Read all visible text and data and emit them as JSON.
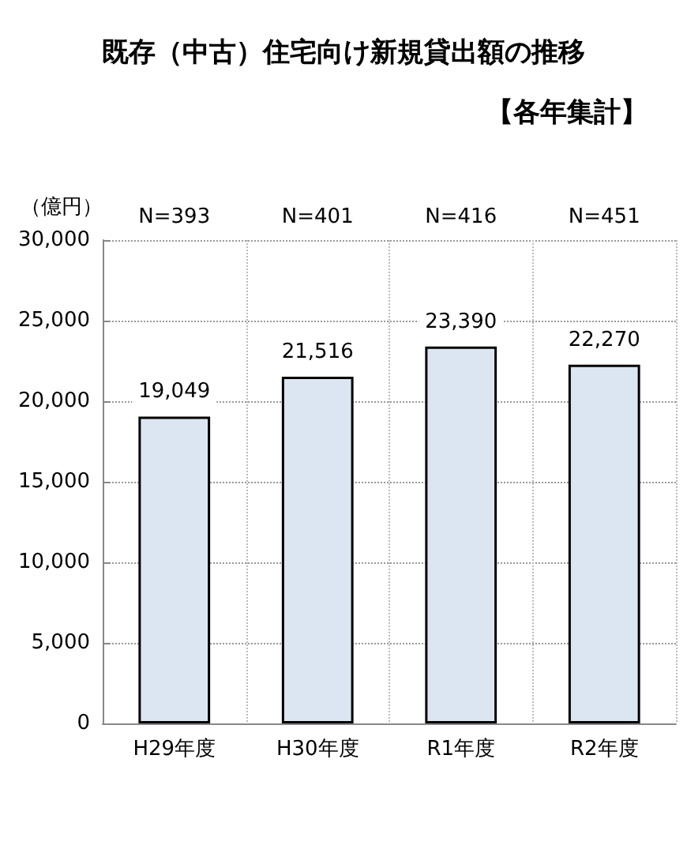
{
  "chart_data": {
    "type": "bar",
    "title": "既存（中古）住宅向け新規貸出額の推移",
    "subtitle": "【各年集計】",
    "ylabel": "（億円）",
    "categories": [
      "H29年度",
      "H30年度",
      "R1年度",
      "R2年度"
    ],
    "values": [
      19049,
      21516,
      23390,
      22270
    ],
    "color": "#dce6f2",
    "value_labels": [
      "19,049",
      "21,516",
      "23,390",
      "22,270"
    ],
    "ylim": [
      0,
      30000
    ],
    "yticks": [
      0,
      {
        "value": 5000,
        "label": "5,000"
      },
      {
        "value": 10000,
        "label": "10,000"
      },
      {
        "value": 15000,
        "label": "15,000"
      },
      {
        "value": 20000,
        "label": "20,000"
      },
      {
        "value": 25000,
        "label": "25,000"
      },
      {
        "value": 30000,
        "label": "30,000"
      }
    ],
    "grid": true,
    "annotations": [
      "N=393",
      "N=401",
      "N=416",
      "N=451"
    ]
  }
}
